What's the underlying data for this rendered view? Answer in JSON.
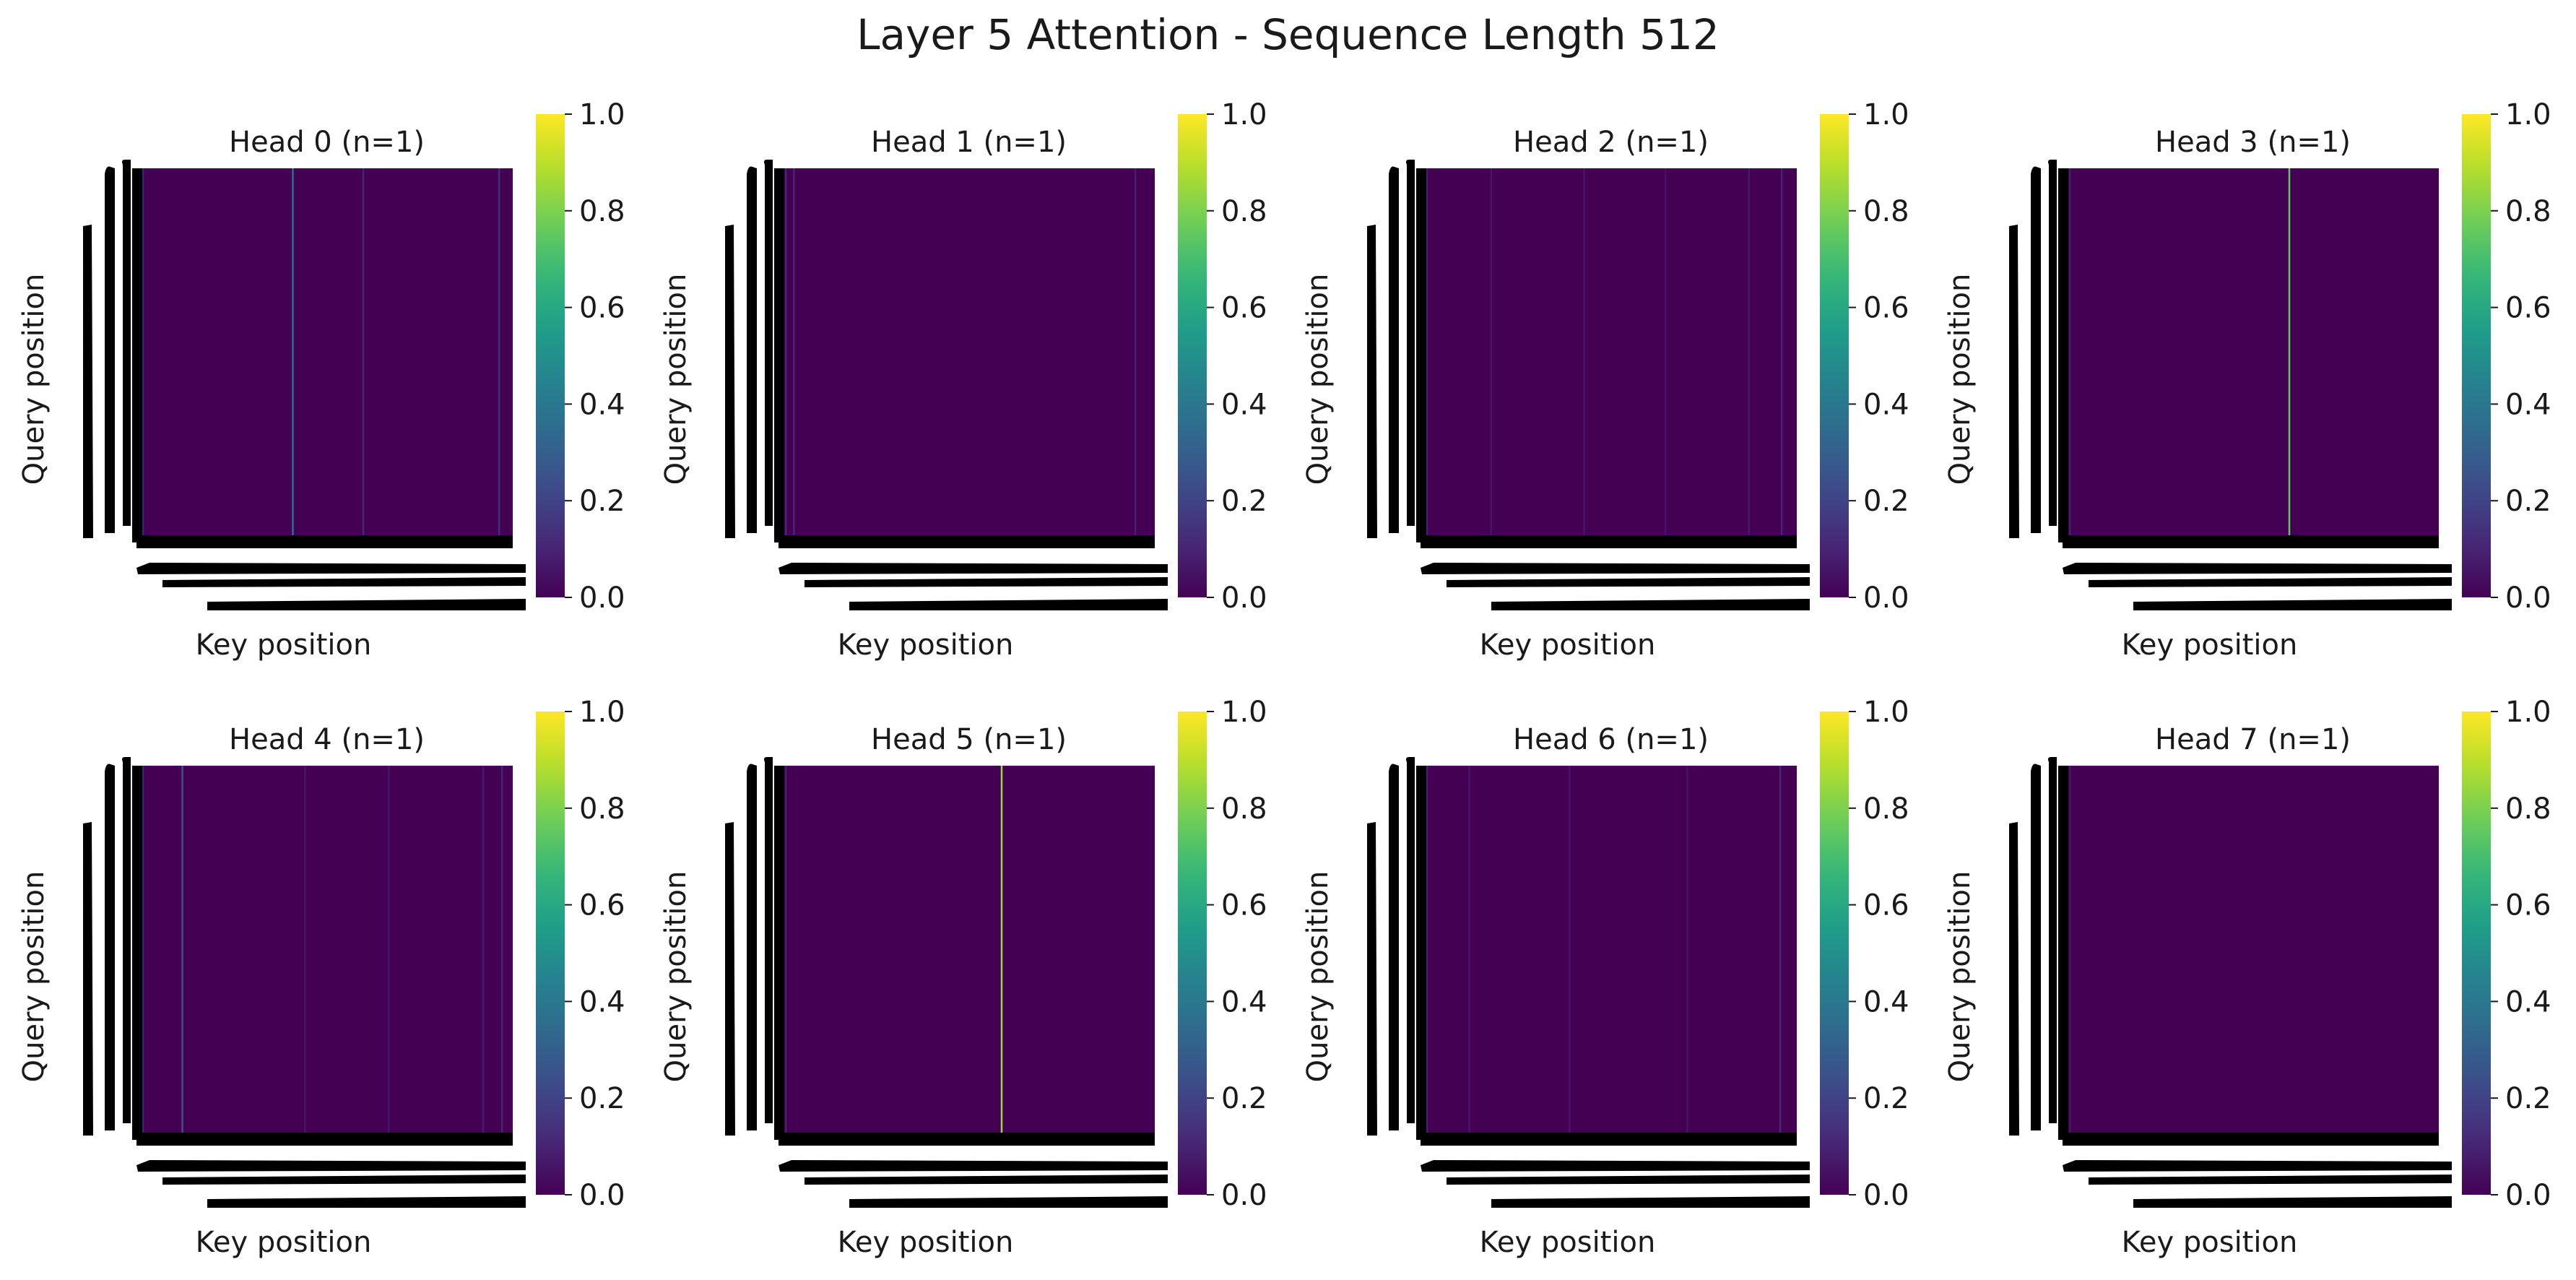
{
  "figure": {
    "title": "Layer 5 Attention - Sequence Length 512"
  },
  "chart_data": [
    {
      "type": "heatmap",
      "title": "Head 0 (n=1)",
      "xlabel": "Key position",
      "ylabel": "Query position",
      "colorbar": {
        "range": [
          0.0,
          1.0
        ],
        "ticks": [
          "0.0",
          "0.2",
          "0.4",
          "0.6",
          "0.8",
          "1.0"
        ],
        "colormap": "viridis"
      },
      "sequence_length": 512,
      "background_value": 0.0,
      "stripes": [
        {
          "key": 2,
          "value": 0.08
        },
        {
          "key": 208,
          "value": 0.35
        },
        {
          "key": 305,
          "value": 0.1
        },
        {
          "key": 492,
          "value": 0.12
        }
      ]
    },
    {
      "type": "heatmap",
      "title": "Head 1 (n=1)",
      "xlabel": "Key position",
      "ylabel": "Query position",
      "colorbar": {
        "range": [
          0.0,
          1.0
        ],
        "ticks": [
          "0.0",
          "0.2",
          "0.4",
          "0.6",
          "0.8",
          "1.0"
        ],
        "colormap": "viridis"
      },
      "sequence_length": 512,
      "background_value": 0.0,
      "stripes": [
        {
          "key": 3,
          "value": 0.1
        },
        {
          "key": 14,
          "value": 0.1
        },
        {
          "key": 484,
          "value": 0.08
        }
      ]
    },
    {
      "type": "heatmap",
      "title": "Head 2 (n=1)",
      "xlabel": "Key position",
      "ylabel": "Query position",
      "colorbar": {
        "range": [
          0.0,
          1.0
        ],
        "ticks": [
          "0.0",
          "0.2",
          "0.4",
          "0.6",
          "0.8",
          "1.0"
        ],
        "colormap": "viridis"
      },
      "sequence_length": 512,
      "background_value": 0.0,
      "stripes": [
        {
          "key": 2,
          "value": 0.08
        },
        {
          "key": 90,
          "value": 0.06
        },
        {
          "key": 218,
          "value": 0.06
        },
        {
          "key": 330,
          "value": 0.05
        },
        {
          "key": 445,
          "value": 0.07
        },
        {
          "key": 490,
          "value": 0.1
        }
      ]
    },
    {
      "type": "heatmap",
      "title": "Head 3 (n=1)",
      "xlabel": "Key position",
      "ylabel": "Query position",
      "colorbar": {
        "range": [
          0.0,
          1.0
        ],
        "ticks": [
          "0.0",
          "0.2",
          "0.4",
          "0.6",
          "0.8",
          "1.0"
        ],
        "colormap": "viridis"
      },
      "sequence_length": 512,
      "background_value": 0.0,
      "stripes": [
        {
          "key": 3,
          "value": 0.08
        },
        {
          "key": 305,
          "value": 0.75
        }
      ]
    },
    {
      "type": "heatmap",
      "title": "Head 4 (n=1)",
      "xlabel": "Key position",
      "ylabel": "Query position",
      "colorbar": {
        "range": [
          0.0,
          1.0
        ],
        "ticks": [
          "0.0",
          "0.2",
          "0.4",
          "0.6",
          "0.8",
          "1.0"
        ],
        "colormap": "viridis"
      },
      "sequence_length": 512,
      "background_value": 0.0,
      "stripes": [
        {
          "key": 2,
          "value": 0.08
        },
        {
          "key": 56,
          "value": 0.25
        },
        {
          "key": 225,
          "value": 0.06
        },
        {
          "key": 340,
          "value": 0.06
        },
        {
          "key": 470,
          "value": 0.07
        },
        {
          "key": 496,
          "value": 0.1
        }
      ]
    },
    {
      "type": "heatmap",
      "title": "Head 5 (n=1)",
      "xlabel": "Key position",
      "ylabel": "Query position",
      "colorbar": {
        "range": [
          0.0,
          1.0
        ],
        "ticks": [
          "0.0",
          "0.2",
          "0.4",
          "0.6",
          "0.8",
          "1.0"
        ],
        "colormap": "viridis"
      },
      "sequence_length": 512,
      "background_value": 0.0,
      "stripes": [
        {
          "key": 3,
          "value": 0.08
        },
        {
          "key": 300,
          "value": 0.85
        }
      ]
    },
    {
      "type": "heatmap",
      "title": "Head 6 (n=1)",
      "xlabel": "Key position",
      "ylabel": "Query position",
      "colorbar": {
        "range": [
          0.0,
          1.0
        ],
        "ticks": [
          "0.0",
          "0.2",
          "0.4",
          "0.6",
          "0.8",
          "1.0"
        ],
        "colormap": "viridis"
      },
      "sequence_length": 512,
      "background_value": 0.0,
      "stripes": [
        {
          "key": 2,
          "value": 0.08
        },
        {
          "key": 60,
          "value": 0.06
        },
        {
          "key": 198,
          "value": 0.06
        },
        {
          "key": 360,
          "value": 0.05
        },
        {
          "key": 488,
          "value": 0.12
        }
      ]
    },
    {
      "type": "heatmap",
      "title": "Head 7 (n=1)",
      "xlabel": "Key position",
      "ylabel": "Query position",
      "colorbar": {
        "range": [
          0.0,
          1.0
        ],
        "ticks": [
          "0.0",
          "0.2",
          "0.4",
          "0.6",
          "0.8",
          "1.0"
        ],
        "colormap": "viridis"
      },
      "sequence_length": 512,
      "background_value": 0.0,
      "stripes": [
        {
          "key": 3,
          "value": 0.06
        }
      ]
    }
  ]
}
